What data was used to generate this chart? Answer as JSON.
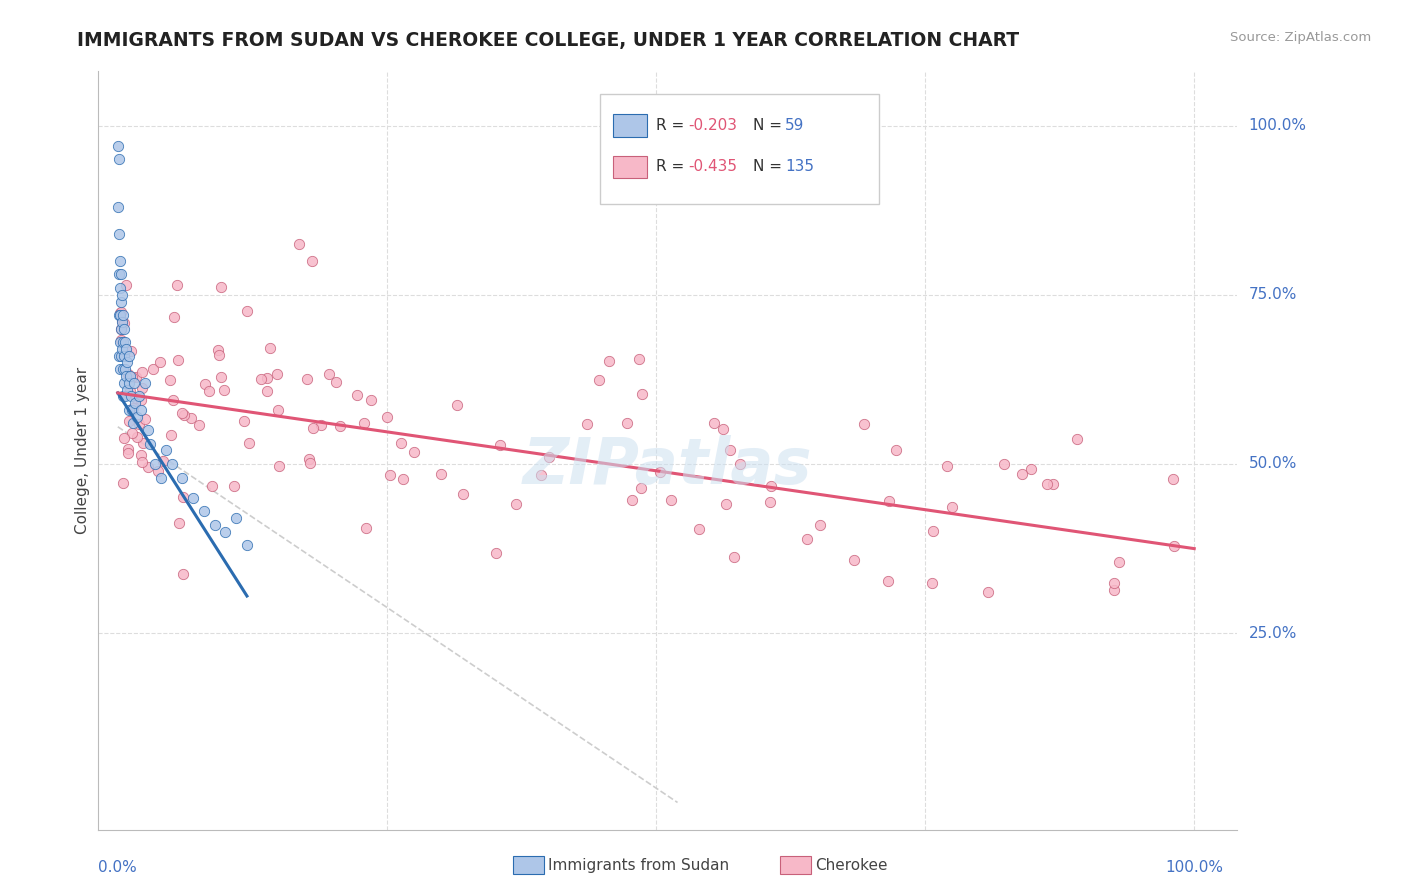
{
  "title": "IMMIGRANTS FROM SUDAN VS CHEROKEE COLLEGE, UNDER 1 YEAR CORRELATION CHART",
  "source": "Source: ZipAtlas.com",
  "ylabel": "College, Under 1 year",
  "sudan_color": "#aec6e8",
  "cherokee_color": "#f7b8c8",
  "sudan_line_color": "#2b6cb0",
  "cherokee_line_color": "#e05575",
  "dashed_line_color": "#c8c8c8",
  "watermark": "ZIPatlas",
  "title_color": "#222222",
  "axis_label_color": "#4472c4",
  "r_value_color": "#e05575",
  "n_value_color": "#4472c4",
  "sudan_R": -0.203,
  "cherokee_R": -0.435,
  "sudan_N": 59,
  "cherokee_N": 135
}
